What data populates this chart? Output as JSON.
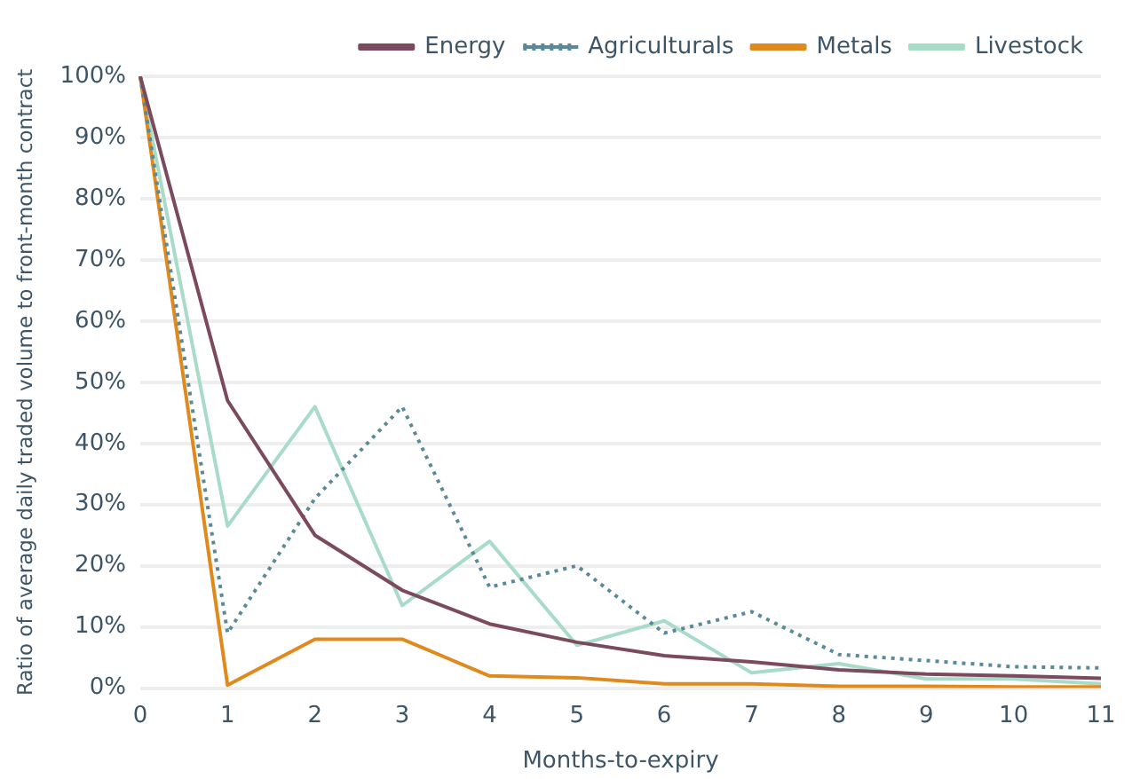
{
  "chart_data": {
    "type": "line",
    "xlabel": "Months-to-expiry",
    "ylabel": "Ratio of average daily traded volume to front-month contract",
    "categories": [
      "0",
      "1",
      "2",
      "3",
      "4",
      "5",
      "6",
      "7",
      "8",
      "9",
      "10",
      "11"
    ],
    "series": [
      {
        "name": "Energy",
        "color": "#7b4a5e",
        "line_style": "solid",
        "values": [
          100,
          47,
          25,
          16,
          10.5,
          7.5,
          5.3,
          4.3,
          3,
          2.3,
          2,
          1.6
        ]
      },
      {
        "name": "Agriculturals",
        "color": "#5a8a99",
        "line_style": "dotted",
        "values": [
          100,
          9,
          31,
          46,
          16.5,
          20,
          9,
          12.5,
          5.5,
          4.5,
          3.5,
          3.3
        ]
      },
      {
        "name": "Metals",
        "color": "#e08a1e",
        "line_style": "solid",
        "values": [
          100,
          0.5,
          8,
          8,
          2,
          1.7,
          0.7,
          0.7,
          0.3,
          0.3,
          0.2,
          0.2
        ]
      },
      {
        "name": "Livestock",
        "color": "#a8dcc8",
        "line_style": "solid",
        "values": [
          100,
          26.5,
          46,
          13.5,
          24,
          7,
          11,
          2.5,
          4,
          1.5,
          1.5,
          0.7
        ]
      }
    ],
    "ylim": [
      0,
      100
    ],
    "yticks": [
      {
        "value": 0,
        "label": "0%"
      },
      {
        "value": 10,
        "label": "10%"
      },
      {
        "value": 20,
        "label": "20%"
      },
      {
        "value": 30,
        "label": "30%"
      },
      {
        "value": 40,
        "label": "40%"
      },
      {
        "value": 50,
        "label": "50%"
      },
      {
        "value": 60,
        "label": "60%"
      },
      {
        "value": 70,
        "label": "70%"
      },
      {
        "value": 80,
        "label": "80%"
      },
      {
        "value": 90,
        "label": "90%"
      },
      {
        "value": 100,
        "label": "100%"
      }
    ],
    "grid": "y",
    "legend": "top right",
    "marker": "none"
  }
}
